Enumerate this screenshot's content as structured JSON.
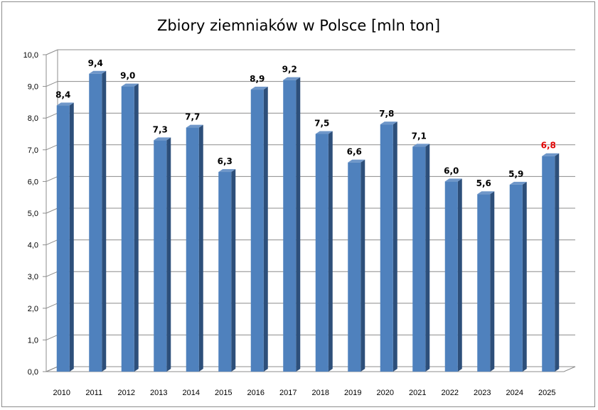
{
  "chart_data": {
    "type": "bar",
    "title": "Zbiory ziemniaków w Polsce [mln ton]",
    "xlabel": "",
    "ylabel": "",
    "categories": [
      "2010",
      "2011",
      "2012",
      "2013",
      "2014",
      "2015",
      "2016",
      "2017",
      "2018",
      "2019",
      "2020",
      "2021",
      "2022",
      "2023",
      "2024",
      "2025"
    ],
    "values": [
      8.4,
      9.4,
      9.0,
      7.3,
      7.7,
      6.3,
      8.9,
      9.2,
      7.5,
      6.6,
      7.8,
      7.1,
      6.0,
      5.6,
      5.9,
      6.8
    ],
    "data_labels": [
      "8,4",
      "9,4",
      "9,0",
      "7,3",
      "7,7",
      "6,3",
      "8,9",
      "9,2",
      "7,5",
      "6,6",
      "7,8",
      "7,1",
      "6,0",
      "5,6",
      "5,9",
      "6,8"
    ],
    "highlight_index": 15,
    "ylim": [
      0,
      10
    ],
    "yticks": [
      0,
      1,
      2,
      3,
      4,
      5,
      6,
      7,
      8,
      9,
      10
    ],
    "ytick_labels": [
      "0,0",
      "1,0",
      "2,0",
      "3,0",
      "4,0",
      "5,0",
      "6,0",
      "7,0",
      "8,0",
      "9,0",
      "10,0"
    ],
    "grid": true,
    "legend": "none",
    "colors": {
      "bar_front": "#4f81bd",
      "bar_side": "#2d4f7a",
      "bar_top": "#6f97c9",
      "label_default": "#000000",
      "label_highlight": "#e00000",
      "grid": "#8c8c8c"
    }
  }
}
